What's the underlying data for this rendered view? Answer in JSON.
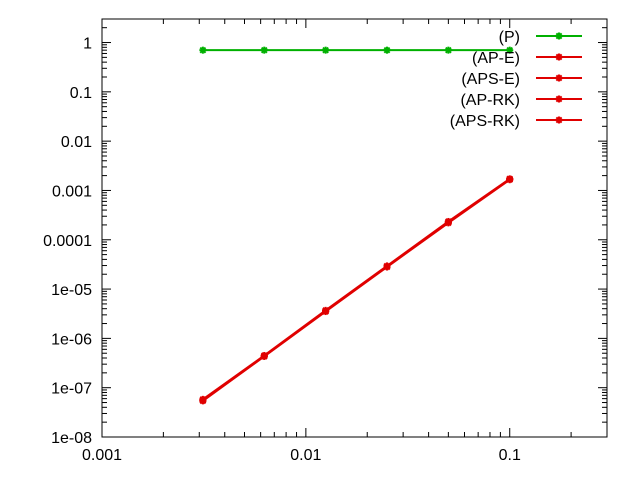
{
  "chart_data": {
    "type": "line",
    "title": "",
    "xlabel": "",
    "ylabel": "",
    "x_scale": "log",
    "y_scale": "log",
    "xlim": [
      0.001,
      0.3
    ],
    "ylim": [
      1e-08,
      3
    ],
    "grid": false,
    "legend_position": "top-right",
    "x_ticks": [
      {
        "value": 0.001,
        "label": "0.001"
      },
      {
        "value": 0.01,
        "label": "0.01"
      },
      {
        "value": 0.1,
        "label": "0.1"
      }
    ],
    "y_ticks": [
      {
        "value": 1e-08,
        "label": "1e-08"
      },
      {
        "value": 1e-07,
        "label": "1e-07"
      },
      {
        "value": 1e-06,
        "label": "1e-06"
      },
      {
        "value": 1e-05,
        "label": "1e-05"
      },
      {
        "value": 0.0001,
        "label": "0.0001"
      },
      {
        "value": 0.001,
        "label": "0.001"
      },
      {
        "value": 0.01,
        "label": "0.01"
      },
      {
        "value": 0.1,
        "label": "0.1"
      },
      {
        "value": 1,
        "label": "1"
      }
    ],
    "x": [
      0.003125,
      0.00625,
      0.0125,
      0.025,
      0.05,
      0.1
    ],
    "series": [
      {
        "name": "(P)",
        "color": "#00b000",
        "values": [
          0.7,
          0.7,
          0.7,
          0.7,
          0.7,
          0.7
        ]
      },
      {
        "name": "(AP-E)",
        "color": "#e00000",
        "values": [
          5.6e-08,
          4.4e-07,
          3.6e-06,
          2.9e-05,
          0.00023,
          0.0017
        ]
      },
      {
        "name": "(APS-E)",
        "color": "#e00000",
        "values": [
          5.4e-08,
          4.3e-07,
          3.5e-06,
          2.8e-05,
          0.00022,
          0.00165
        ]
      },
      {
        "name": "(AP-RK)",
        "color": "#e00000",
        "values": [
          5.8e-08,
          4.5e-07,
          3.7e-06,
          2.95e-05,
          0.000235,
          0.00172
        ]
      },
      {
        "name": "(APS-RK)",
        "color": "#e00000",
        "values": [
          5.5e-08,
          4.35e-07,
          3.55e-06,
          2.85e-05,
          0.000225,
          0.00168
        ]
      }
    ]
  }
}
